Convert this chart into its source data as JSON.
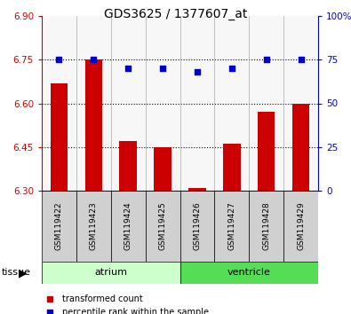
{
  "title": "GDS3625 / 1377607_at",
  "samples": [
    "GSM119422",
    "GSM119423",
    "GSM119424",
    "GSM119425",
    "GSM119426",
    "GSM119427",
    "GSM119428",
    "GSM119429"
  ],
  "bar_values": [
    6.67,
    6.75,
    6.47,
    6.45,
    6.31,
    6.46,
    6.57,
    6.6
  ],
  "percentile_values": [
    75,
    75,
    70,
    70,
    68,
    70,
    75,
    75
  ],
  "bar_baseline": 6.3,
  "left_ylim": [
    6.3,
    6.9
  ],
  "right_ylim": [
    0,
    100
  ],
  "left_yticks": [
    6.3,
    6.45,
    6.6,
    6.75,
    6.9
  ],
  "right_yticks": [
    0,
    25,
    50,
    75,
    100
  ],
  "right_yticklabels": [
    "0",
    "25",
    "50",
    "75",
    "100%"
  ],
  "hgrid_values": [
    6.45,
    6.6,
    6.75
  ],
  "bar_color": "#cc0000",
  "marker_color": "#0000cc",
  "tissue_groups": [
    {
      "label": "atrium",
      "start": 0,
      "end": 3,
      "color": "#ccffcc"
    },
    {
      "label": "ventricle",
      "start": 4,
      "end": 7,
      "color": "#55dd55"
    }
  ],
  "left_tick_color": "#cc0000",
  "right_tick_color": "#0000cc",
  "tissue_label": "tissue",
  "legend_red_label": "transformed count",
  "legend_blue_label": "percentile rank within the sample",
  "sample_box_color": "#d0d0d0",
  "title_fontsize": 10
}
